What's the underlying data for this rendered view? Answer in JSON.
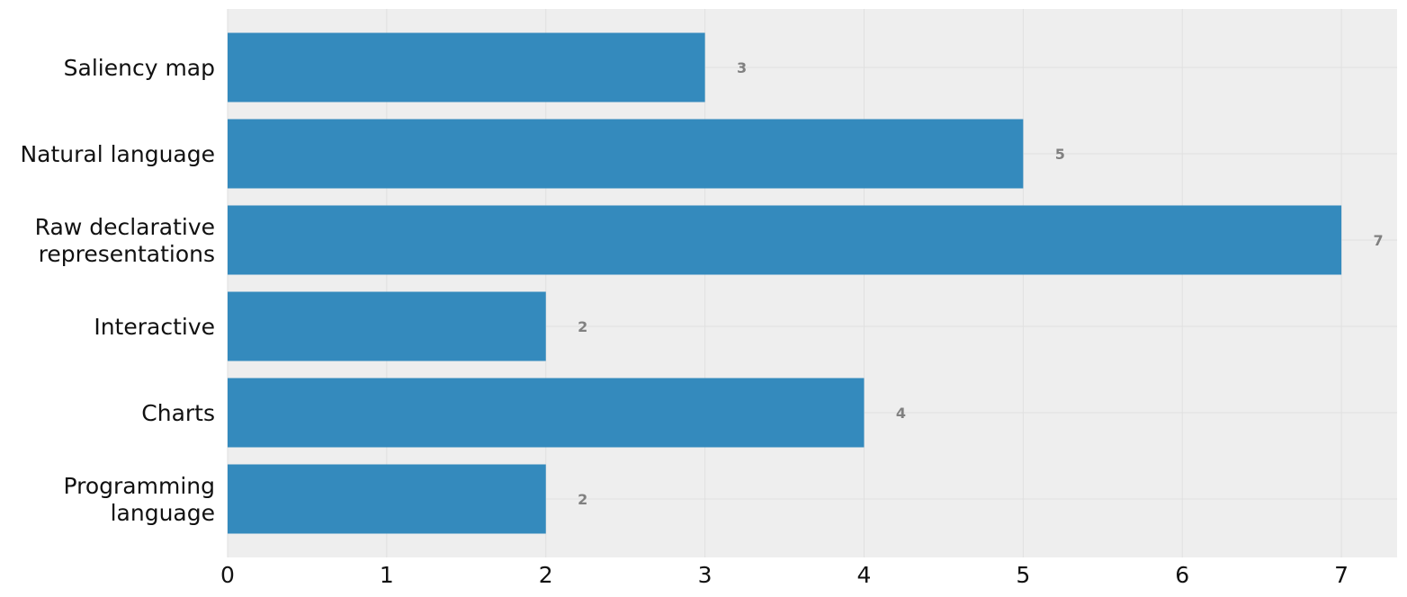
{
  "chart_data": {
    "type": "bar",
    "orientation": "horizontal",
    "categories": [
      [
        "Saliency map"
      ],
      [
        "Natural language"
      ],
      [
        "Raw declarative",
        "representations"
      ],
      [
        "Interactive"
      ],
      [
        "Charts"
      ],
      [
        "Programming",
        "language"
      ]
    ],
    "values": [
      3,
      5,
      7,
      2,
      4,
      2
    ],
    "data_labels": [
      "3",
      "5",
      "7",
      "2",
      "4",
      "2"
    ],
    "xticks": [
      0,
      1,
      2,
      3,
      4,
      5,
      6,
      7
    ],
    "xlim": [
      0,
      7.35
    ],
    "title": "",
    "xlabel": "",
    "ylabel": "",
    "grid": true,
    "colors": {
      "bar": "#348ABD",
      "plot_background": "#EEEEEE",
      "grid": "#E0E0E0",
      "data_label": "#808080"
    }
  }
}
